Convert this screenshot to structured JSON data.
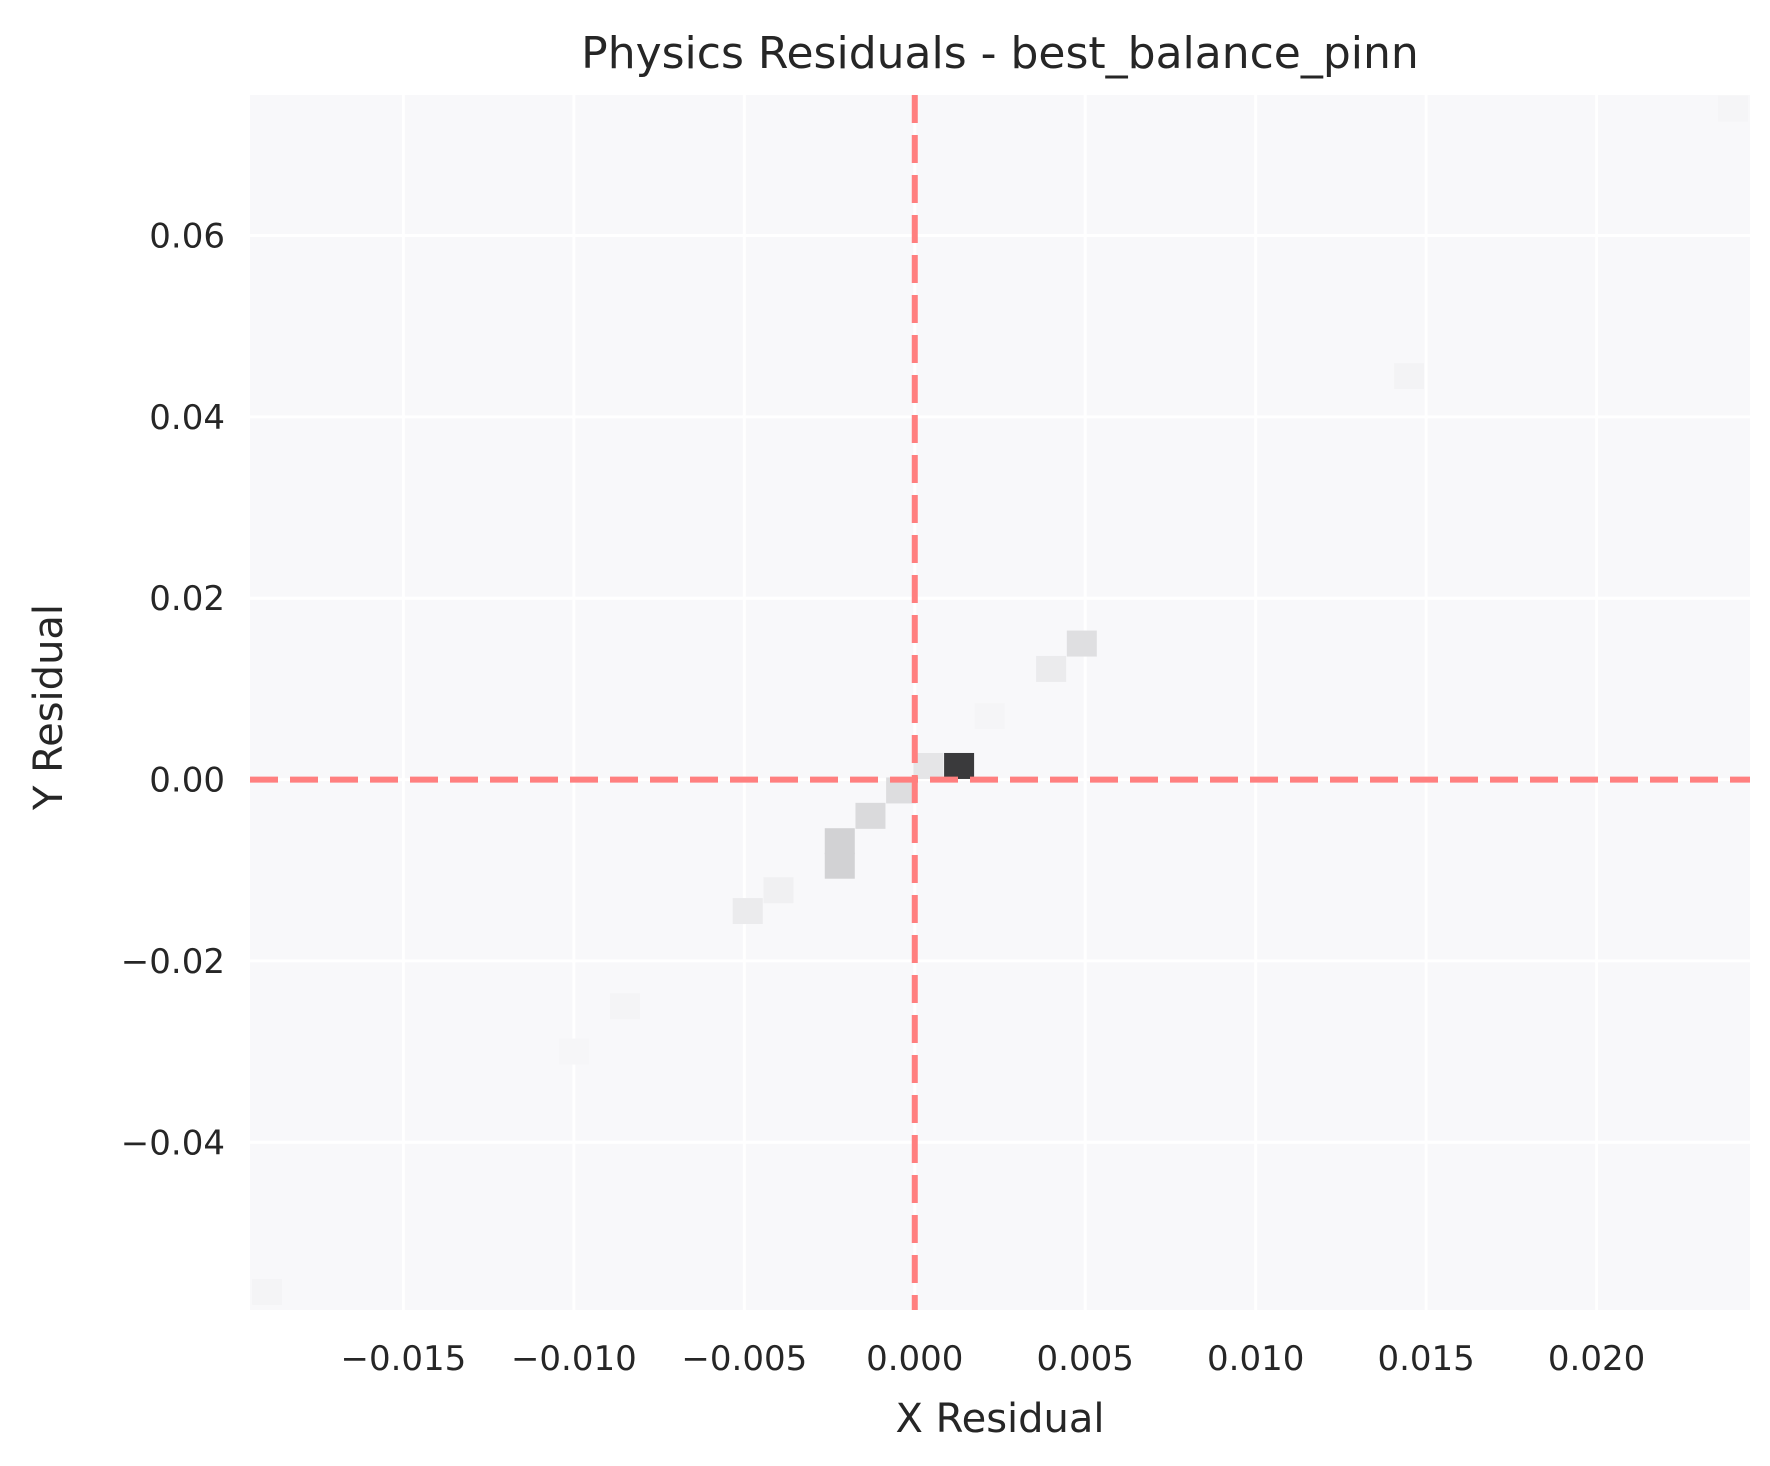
{
  "chart_data": {
    "type": "heatmap",
    "title": "Physics Residuals - best_balance_pinn",
    "xlabel": "X Residual",
    "ylabel": "Y Residual",
    "xlim": [
      -0.0195,
      0.0245
    ],
    "ylim": [
      -0.0585,
      0.0755
    ],
    "grid": true,
    "x_ticks": [
      -0.015,
      -0.01,
      -0.005,
      0.0,
      0.005,
      0.01,
      0.015,
      0.02
    ],
    "x_tick_labels": [
      "−0.015",
      "−0.010",
      "−0.005",
      "0.000",
      "0.005",
      "0.010",
      "0.015",
      "0.020"
    ],
    "y_ticks": [
      -0.04,
      -0.02,
      0.0,
      0.02,
      0.04,
      0.06
    ],
    "y_tick_labels": [
      "−0.04",
      "−0.02",
      "0.00",
      "0.02",
      "0.04",
      "0.06"
    ],
    "reference_lines": [
      {
        "axis": "x",
        "value": 0.0,
        "style": "dashed",
        "color": "#ff7f7f"
      },
      {
        "axis": "y",
        "value": 0.0,
        "style": "dashed",
        "color": "#ff7f7f"
      }
    ],
    "cells": [
      {
        "x": 0.0013,
        "y": 0.0015,
        "density": 1.0
      },
      {
        "x": 0.0004,
        "y": 0.0015,
        "density": 0.1
      },
      {
        "x": -0.0004,
        "y": -0.0012,
        "density": 0.14
      },
      {
        "x": -0.0013,
        "y": -0.004,
        "density": 0.16
      },
      {
        "x": -0.0022,
        "y": -0.0068,
        "density": 0.2
      },
      {
        "x": -0.0022,
        "y": -0.0095,
        "density": 0.2
      },
      {
        "x": -0.004,
        "y": -0.0122,
        "density": 0.04
      },
      {
        "x": -0.0049,
        "y": -0.0145,
        "density": 0.07
      },
      {
        "x": 0.0022,
        "y": 0.007,
        "density": 0.015
      },
      {
        "x": 0.004,
        "y": 0.0122,
        "density": 0.07
      },
      {
        "x": 0.0049,
        "y": 0.015,
        "density": 0.13
      },
      {
        "x": -0.0085,
        "y": -0.025,
        "density": 0.02
      },
      {
        "x": 0.0145,
        "y": 0.0445,
        "density": 0.025
      },
      {
        "x": -0.019,
        "y": -0.0565,
        "density": 0.02
      },
      {
        "x": 0.024,
        "y": 0.074,
        "density": 0.015
      },
      {
        "x": -0.01,
        "y": -0.03,
        "density": 0.01
      }
    ],
    "colors": {
      "background": "#f8f8fa",
      "grid": "#ffffff",
      "cell_max": "#3a3a3c",
      "reference": "#ff7f7f"
    }
  }
}
